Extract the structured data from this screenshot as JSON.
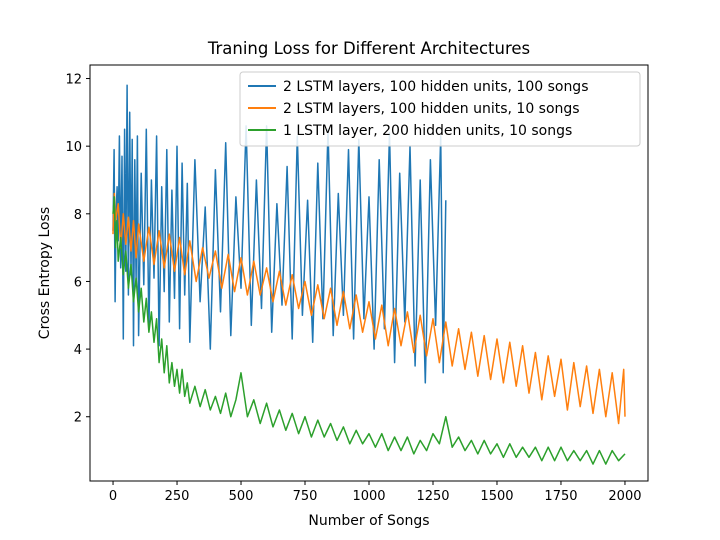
{
  "chart_data": {
    "type": "line",
    "title": "Traning Loss for Different Architectures",
    "xlabel": "Number of Songs",
    "ylabel": "Cross Entropy Loss",
    "xlim": [
      -90,
      2090
    ],
    "ylim": [
      0.1,
      12.4
    ],
    "xticks": [
      0,
      250,
      500,
      750,
      1000,
      1250,
      1500,
      1750,
      2000
    ],
    "yticks": [
      2,
      4,
      6,
      8,
      10,
      12
    ],
    "legend_position": "top-right",
    "grid": false,
    "series": [
      {
        "name": "2 LSTM layers, 100 hidden units, 100 songs",
        "color": "#1f77b4",
        "x": [
          0,
          4,
          8,
          12,
          16,
          20,
          25,
          30,
          35,
          40,
          45,
          50,
          55,
          60,
          65,
          70,
          75,
          80,
          85,
          90,
          95,
          100,
          110,
          120,
          130,
          140,
          150,
          160,
          170,
          180,
          190,
          200,
          210,
          220,
          230,
          240,
          250,
          260,
          270,
          280,
          290,
          300,
          320,
          340,
          360,
          380,
          400,
          420,
          440,
          460,
          480,
          500,
          520,
          540,
          560,
          580,
          600,
          620,
          640,
          660,
          680,
          700,
          720,
          740,
          760,
          780,
          800,
          820,
          840,
          860,
          880,
          900,
          920,
          940,
          960,
          980,
          1000,
          1020,
          1040,
          1060,
          1080,
          1100,
          1120,
          1140,
          1160,
          1180,
          1200,
          1220,
          1240,
          1260,
          1280,
          1290,
          1300
        ],
        "y": [
          7.5,
          9.9,
          5.4,
          8.0,
          8.8,
          7.2,
          10.3,
          6.4,
          9.7,
          4.3,
          10.5,
          6.3,
          11.8,
          5.6,
          11.0,
          6.2,
          10.2,
          4.1,
          9.6,
          6.0,
          10.3,
          4.4,
          9.2,
          5.9,
          10.5,
          4.6,
          9.0,
          6.1,
          10.3,
          4.1,
          8.8,
          5.7,
          9.9,
          4.8,
          8.7,
          5.5,
          10.0,
          4.6,
          9.5,
          5.6,
          8.9,
          4.2,
          9.6,
          5.4,
          8.2,
          4.0,
          9.3,
          5.1,
          10.1,
          4.4,
          8.5,
          5.8,
          10.6,
          4.7,
          9.0,
          5.2,
          10.6,
          4.5,
          8.3,
          5.3,
          9.4,
          4.3,
          10.3,
          5.0,
          8.4,
          4.2,
          9.5,
          4.9,
          10.5,
          4.4,
          8.6,
          5.0,
          9.9,
          4.3,
          10.2,
          4.9,
          8.5,
          4.0,
          9.6,
          4.6,
          10.4,
          3.6,
          9.2,
          4.8,
          10.0,
          3.5,
          9.0,
          3.0,
          9.6,
          4.7,
          10.3,
          3.3,
          8.4
        ]
      },
      {
        "name": "2 LSTM layers, 100 hidden units, 10 songs",
        "color": "#ff7f0e",
        "x": [
          0,
          5,
          10,
          20,
          30,
          40,
          50,
          60,
          70,
          80,
          90,
          100,
          120,
          140,
          160,
          180,
          200,
          220,
          240,
          260,
          280,
          300,
          325,
          350,
          375,
          400,
          425,
          450,
          475,
          500,
          525,
          550,
          575,
          600,
          625,
          650,
          675,
          700,
          725,
          750,
          775,
          800,
          825,
          850,
          875,
          900,
          925,
          950,
          975,
          1000,
          1025,
          1050,
          1075,
          1100,
          1125,
          1150,
          1175,
          1200,
          1225,
          1250,
          1275,
          1300,
          1325,
          1350,
          1375,
          1400,
          1425,
          1450,
          1475,
          1500,
          1525,
          1550,
          1575,
          1600,
          1625,
          1650,
          1675,
          1700,
          1725,
          1750,
          1775,
          1800,
          1825,
          1850,
          1875,
          1900,
          1925,
          1950,
          1975,
          1995,
          2000
        ],
        "y": [
          7.4,
          8.6,
          7.8,
          8.3,
          7.0,
          8.0,
          7.1,
          7.9,
          6.9,
          7.8,
          6.7,
          7.7,
          6.6,
          7.6,
          6.5,
          7.5,
          6.4,
          7.4,
          6.3,
          7.3,
          6.2,
          7.2,
          6.0,
          7.0,
          6.1,
          6.9,
          5.8,
          6.8,
          5.7,
          6.7,
          5.6,
          6.6,
          5.6,
          6.4,
          5.4,
          6.3,
          5.3,
          6.2,
          5.2,
          6.0,
          5.0,
          5.9,
          4.9,
          5.8,
          4.7,
          5.7,
          4.6,
          5.6,
          4.5,
          5.4,
          4.3,
          5.3,
          4.1,
          5.2,
          4.1,
          5.1,
          3.9,
          5.0,
          3.8,
          4.9,
          3.6,
          4.8,
          3.5,
          4.6,
          3.4,
          4.5,
          3.2,
          4.4,
          3.1,
          4.3,
          3.0,
          4.2,
          2.9,
          4.1,
          2.7,
          3.9,
          2.5,
          3.8,
          2.6,
          3.7,
          2.2,
          3.6,
          2.3,
          3.5,
          2.1,
          3.4,
          2.0,
          3.3,
          1.8,
          3.4,
          2.0
        ]
      },
      {
        "name": "1 LSTM layer, 200 hidden units, 10 songs",
        "color": "#2ca02c",
        "x": [
          0,
          5,
          10,
          15,
          20,
          30,
          40,
          50,
          60,
          70,
          80,
          90,
          100,
          110,
          120,
          130,
          140,
          150,
          160,
          170,
          180,
          190,
          200,
          210,
          220,
          230,
          240,
          250,
          260,
          270,
          280,
          290,
          300,
          320,
          340,
          360,
          380,
          400,
          420,
          440,
          460,
          480,
          500,
          525,
          550,
          575,
          600,
          625,
          650,
          675,
          700,
          725,
          750,
          775,
          800,
          825,
          850,
          875,
          900,
          925,
          950,
          975,
          1000,
          1025,
          1050,
          1075,
          1100,
          1125,
          1150,
          1175,
          1200,
          1225,
          1250,
          1275,
          1300,
          1325,
          1350,
          1375,
          1400,
          1425,
          1450,
          1475,
          1500,
          1525,
          1550,
          1575,
          1600,
          1625,
          1650,
          1675,
          1700,
          1725,
          1750,
          1775,
          1800,
          1825,
          1850,
          1875,
          1900,
          1925,
          1950,
          1975,
          2000
        ],
        "y": [
          8.0,
          8.5,
          7.0,
          7.8,
          6.6,
          7.3,
          6.2,
          6.9,
          5.8,
          6.5,
          5.4,
          6.1,
          5.1,
          5.8,
          4.8,
          5.5,
          4.5,
          5.1,
          4.2,
          4.9,
          3.6,
          4.3,
          3.3,
          4.1,
          3.0,
          3.6,
          2.9,
          3.4,
          2.7,
          3.4,
          2.6,
          3.0,
          2.4,
          2.9,
          2.3,
          2.8,
          2.2,
          2.6,
          2.1,
          2.7,
          2.0,
          2.5,
          3.3,
          2.0,
          2.5,
          1.8,
          2.4,
          1.7,
          2.2,
          1.6,
          2.1,
          1.5,
          2.0,
          1.4,
          1.9,
          1.4,
          1.8,
          1.3,
          1.7,
          1.2,
          1.6,
          1.2,
          1.5,
          1.1,
          1.5,
          1.0,
          1.4,
          1.0,
          1.4,
          0.9,
          1.3,
          1.0,
          1.5,
          1.2,
          2.0,
          1.1,
          1.4,
          1.0,
          1.3,
          0.9,
          1.3,
          0.9,
          1.2,
          0.8,
          1.2,
          0.8,
          1.1,
          0.8,
          1.1,
          0.7,
          1.1,
          0.7,
          1.1,
          0.7,
          1.0,
          0.7,
          1.0,
          0.6,
          1.0,
          0.6,
          1.0,
          0.7,
          0.9
        ]
      }
    ]
  }
}
